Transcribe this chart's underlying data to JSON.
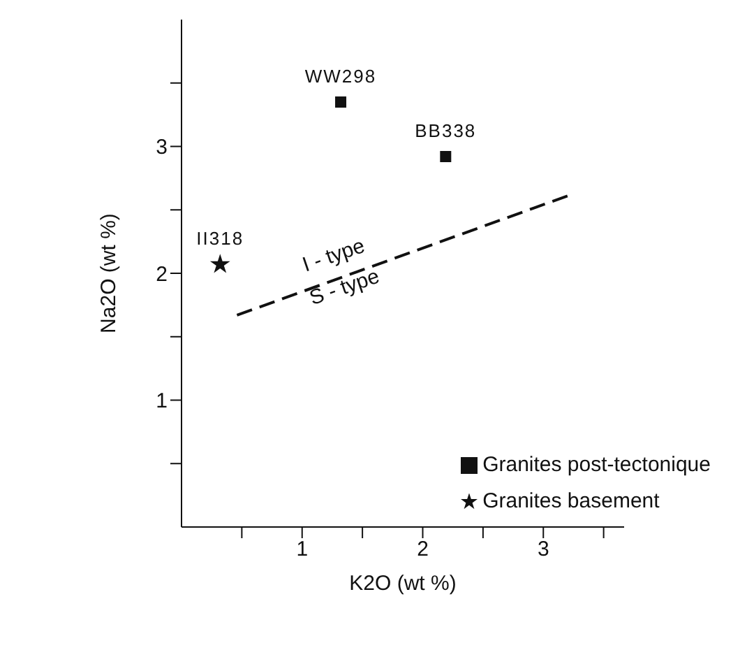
{
  "chart_data": {
    "type": "scatter",
    "xlabel": "K2O (wt %)",
    "ylabel": "Na2O (wt %)",
    "xlim": [
      0,
      3.67
    ],
    "ylim": [
      0,
      4
    ],
    "xticks": [
      {
        "value": 0.5,
        "label": null
      },
      1,
      {
        "value": 1.5,
        "label": null
      },
      2,
      {
        "value": 2.5,
        "label": null
      },
      3,
      {
        "value": 3.5,
        "label": null
      }
    ],
    "yticks": [
      {
        "value": 0.5,
        "label": null
      },
      1,
      {
        "value": 1.5,
        "label": null
      },
      2,
      {
        "value": 2.5,
        "label": null
      },
      3,
      {
        "value": 3.5,
        "label": null
      }
    ],
    "grid": false,
    "legend": "bottom right",
    "series": [
      {
        "name": "Granites post-tectonique",
        "color": "#111111",
        "marker": "square",
        "x": [
          1.32,
          2.19
        ],
        "values": [
          3.35,
          2.92
        ]
      },
      {
        "name": "Granites basement",
        "color": "#111111",
        "marker": "star",
        "x": [
          0.32
        ],
        "values": [
          2.07
        ]
      },
      {
        "type": "line",
        "color": "#111111",
        "line_style": "dashed",
        "marker": "none",
        "x": [
          0.46,
          3.2
        ],
        "values": [
          1.67,
          2.61
        ]
      }
    ],
    "annotations": [
      {
        "text": "WW298",
        "x": 1.32,
        "y": 3.35
      },
      {
        "text": "BB338",
        "x": 2.19,
        "y": 2.92
      },
      {
        "text": "II318",
        "x": 0.32,
        "y": 2.07
      },
      "I - type",
      "S - type"
    ]
  }
}
